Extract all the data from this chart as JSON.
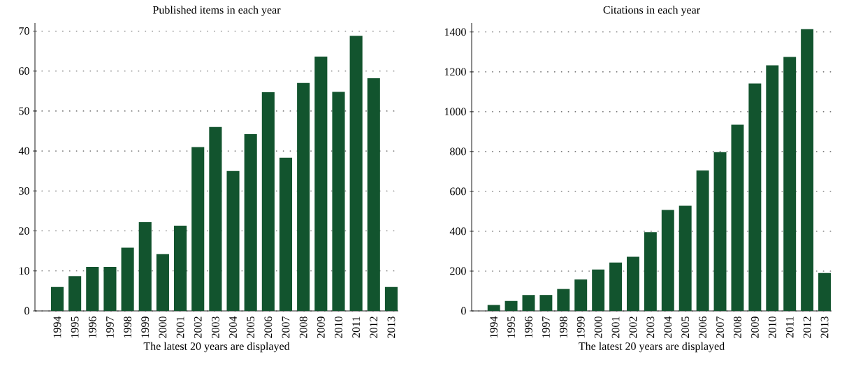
{
  "chart_data": [
    {
      "type": "bar",
      "title": "Published items in each year",
      "xlabel": "The latest 20 years are displayed",
      "categories": [
        "1994",
        "1995",
        "1996",
        "1997",
        "1998",
        "1999",
        "2000",
        "2001",
        "2002",
        "2003",
        "2004",
        "2005",
        "2006",
        "2007",
        "2008",
        "2009",
        "2010",
        "2011",
        "2012",
        "2013"
      ],
      "values": [
        6,
        8.7,
        11,
        11,
        15.8,
        22.2,
        14.2,
        21.3,
        41,
        46,
        35,
        44.2,
        54.7,
        38.3,
        57,
        63.6,
        54.8,
        68.8,
        58.2,
        6
      ],
      "color": "#12542e",
      "ylim": [
        0,
        72
      ],
      "yticks": [
        0,
        10,
        20,
        30,
        40,
        50,
        60,
        70
      ],
      "grid": "y"
    },
    {
      "type": "bar",
      "title": "Citations in each year",
      "xlabel": "The latest 20 years are displayed",
      "categories": [
        "1994",
        "1995",
        "1996",
        "1997",
        "1998",
        "1999",
        "2000",
        "2001",
        "2002",
        "2003",
        "2004",
        "2005",
        "2006",
        "2007",
        "2008",
        "2009",
        "2010",
        "2011",
        "2012",
        "2013"
      ],
      "values": [
        30,
        50,
        80,
        80,
        110,
        158,
        208,
        243,
        272,
        395,
        507,
        528,
        705,
        797,
        935,
        1142,
        1233,
        1275,
        1415,
        190
      ],
      "color": "#12542e",
      "ylim": [
        0,
        1445
      ],
      "yticks": [
        0,
        200,
        400,
        600,
        800,
        1000,
        1200,
        1400
      ],
      "grid": "y"
    }
  ]
}
